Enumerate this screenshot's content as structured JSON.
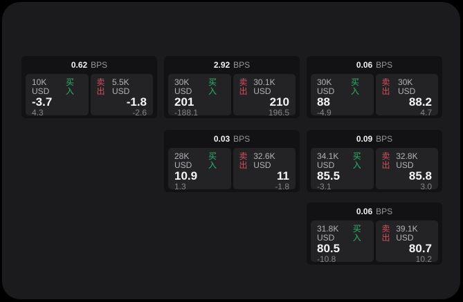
{
  "labels": {
    "bps_unit": "BPS",
    "buy": "买入",
    "sell": "卖出"
  },
  "colors": {
    "buy_green": "#2eb36a",
    "sell_red": "#d44e5e",
    "window_surface": "#1b1b1d",
    "card_background": "#121214",
    "tile_background": "#232326"
  },
  "cards": [
    {
      "bps": "0.62",
      "buy": {
        "amount": "10K USD",
        "value": "-3.7",
        "sub": "4.3"
      },
      "sell": {
        "amount": "5.5K USD",
        "value": "-1.8",
        "sub": "-2.6"
      }
    },
    {
      "bps": "2.92",
      "buy": {
        "amount": "30K USD",
        "value": "201",
        "sub": "-188.1"
      },
      "sell": {
        "amount": "30.1K USD",
        "value": "210",
        "sub": "196.5"
      }
    },
    {
      "bps": "0.06",
      "buy": {
        "amount": "30K USD",
        "value": "88",
        "sub": "-4.9"
      },
      "sell": {
        "amount": "30K USD",
        "value": "88.2",
        "sub": "4.7"
      }
    },
    {
      "bps": "0.03",
      "buy": {
        "amount": "28K USD",
        "value": "10.9",
        "sub": "1.3"
      },
      "sell": {
        "amount": "32.6K USD",
        "value": "11",
        "sub": "-1.8"
      }
    },
    {
      "bps": "0.09",
      "buy": {
        "amount": "34.1K USD",
        "value": "85.5",
        "sub": "-3.1"
      },
      "sell": {
        "amount": "32.8K USD",
        "value": "85.8",
        "sub": "3.0"
      }
    },
    {
      "bps": "0.06",
      "buy": {
        "amount": "31.8K USD",
        "value": "80.5",
        "sub": "-10.8"
      },
      "sell": {
        "amount": "39.1K USD",
        "value": "80.7",
        "sub": "10.2"
      }
    }
  ]
}
